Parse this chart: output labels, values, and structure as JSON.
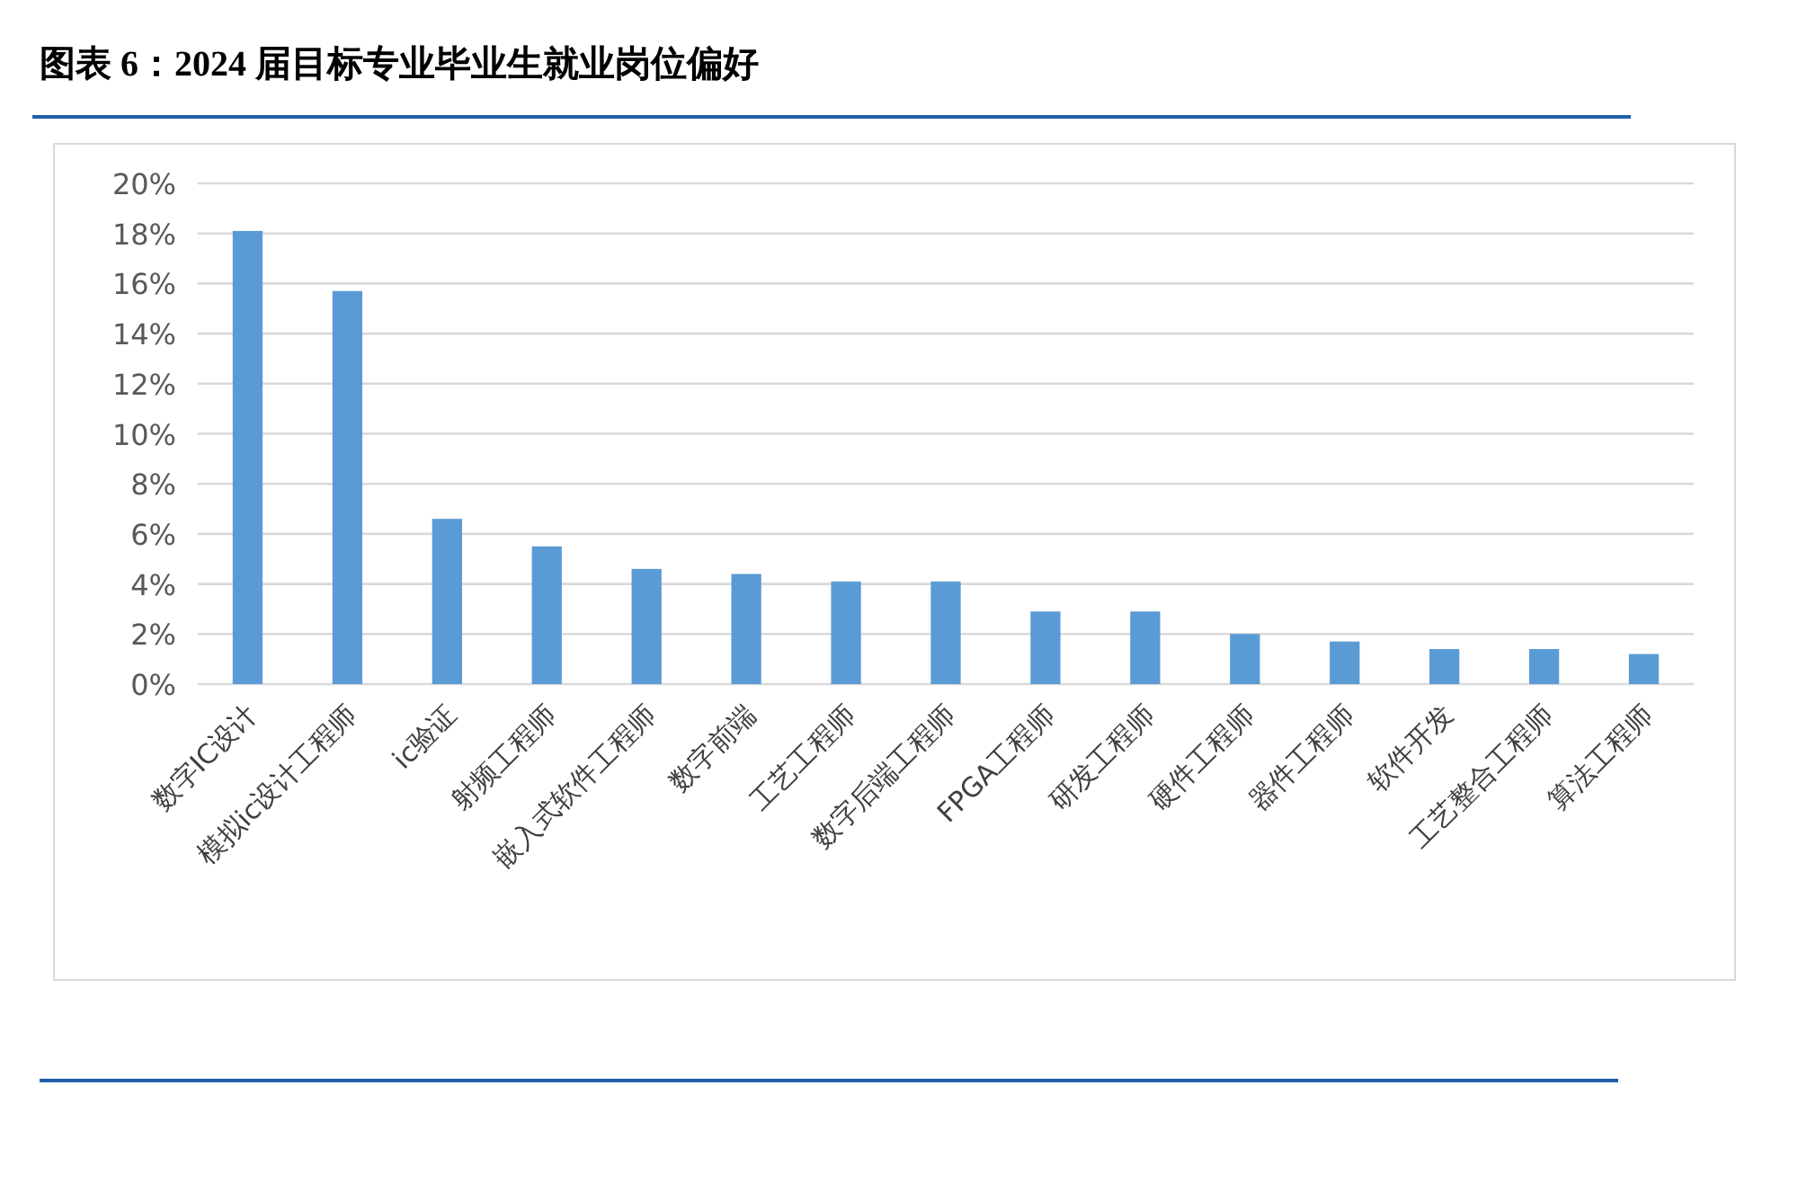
{
  "chart_data": {
    "type": "bar",
    "title": "图表 6：2024 届目标专业毕业生就业岗位偏好",
    "categories": [
      "数字IC设计",
      "模拟ic设计工程师",
      "ic验证",
      "射频工程师",
      "嵌入式软件工程师",
      "数字前端",
      "工艺工程师",
      "数字后端工程师",
      "FPGA工程师",
      "研发工程师",
      "硬件工程师",
      "器件工程师",
      "软件开发",
      "工艺整合工程师",
      "算法工程师"
    ],
    "values": [
      18.1,
      15.7,
      6.6,
      5.5,
      4.6,
      4.4,
      4.1,
      4.1,
      2.9,
      2.9,
      2.0,
      1.7,
      1.4,
      1.4,
      1.2
    ],
    "color": "#5b9bd5",
    "ylim": [
      0,
      20
    ],
    "yticks": [
      {
        "value": 0,
        "label": "0%"
      },
      {
        "value": 2,
        "label": "2%"
      },
      {
        "value": 4,
        "label": "4%"
      },
      {
        "value": 6,
        "label": "6%"
      },
      {
        "value": 8,
        "label": "8%"
      },
      {
        "value": 10,
        "label": "10%"
      },
      {
        "value": 12,
        "label": "12%"
      },
      {
        "value": 14,
        "label": "14%"
      },
      {
        "value": 16,
        "label": "16%"
      },
      {
        "value": 18,
        "label": "18%"
      },
      {
        "value": 20,
        "label": "20%"
      }
    ],
    "grid": "y"
  }
}
